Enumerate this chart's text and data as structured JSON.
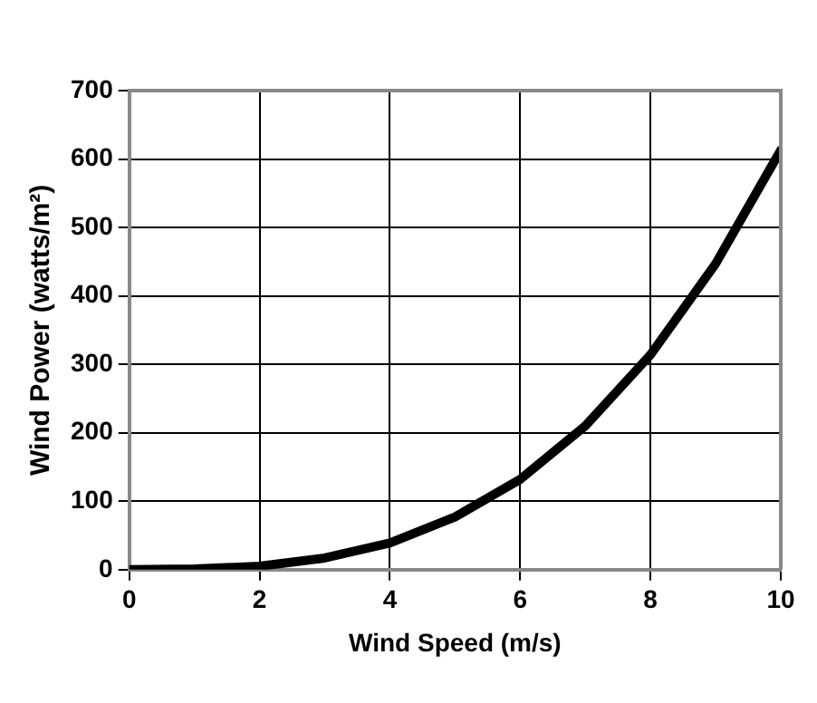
{
  "chart_data": {
    "type": "line",
    "xlabel": "Wind Speed (m/s)",
    "ylabel": "Wind Power (watts/m²)",
    "x": [
      0,
      1,
      2,
      3,
      4,
      5,
      6,
      7,
      8,
      9,
      10
    ],
    "series": [
      {
        "color": "#000000",
        "values": [
          0,
          1,
          5,
          17,
          39,
          77,
          132,
          210,
          314,
          447,
          613
        ]
      }
    ],
    "xlim": [
      0,
      10
    ],
    "xticks": [
      0,
      2,
      4,
      6,
      8,
      10
    ],
    "ylim": [
      0,
      700
    ],
    "yticks": [
      0,
      100,
      200,
      300,
      400,
      500,
      600,
      700
    ],
    "grid": true,
    "legend": false,
    "marker": "none",
    "line_style": "solid"
  }
}
